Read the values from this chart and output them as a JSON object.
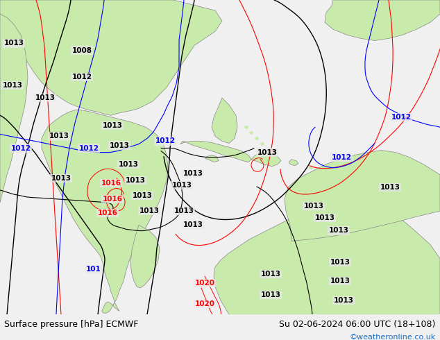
{
  "title_left": "Surface pressure [hPa] ECMWF",
  "title_right": "Su 02-06-2024 06:00 UTC (18+108)",
  "credit": "©weatheronline.co.uk",
  "bg_color": "#f0f0f0",
  "ocean_color": "#e8e8e8",
  "land_color": "#c8eaaa",
  "land_border_color": "#888888",
  "bottom_bar_color": "#f0f0f0",
  "title_fontsize": 9,
  "credit_fontsize": 8,
  "credit_color": "#1a6ec4",
  "fig_width": 6.34,
  "fig_height": 4.9
}
